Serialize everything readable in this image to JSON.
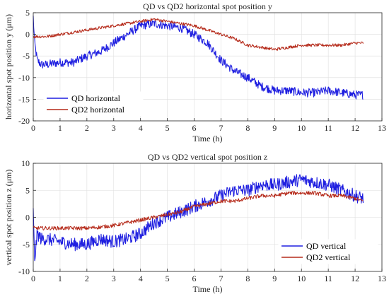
{
  "chart_data": [
    {
      "type": "line",
      "title": "QD vs QD2 horizontal spot position y",
      "xlabel": "Time (h)",
      "ylabel": "horizontal spot position y (μm)",
      "xlim": [
        0,
        13
      ],
      "ylim": [
        -20,
        5
      ],
      "xticks": [
        0,
        1,
        2,
        3,
        4,
        5,
        6,
        7,
        8,
        9,
        10,
        11,
        12,
        13
      ],
      "yticks": [
        5,
        0,
        -5,
        -10,
        -15,
        -20
      ],
      "grid": true,
      "legend": "bottom-left",
      "series": [
        {
          "name": "QD horizontal",
          "color": "#1f1fe0",
          "noise": 1.0,
          "x": [
            0,
            0.05,
            0.15,
            0.3,
            0.5,
            1,
            1.5,
            2,
            2.5,
            3,
            3.5,
            4,
            4.5,
            5,
            5.5,
            6,
            6.5,
            7,
            7.5,
            8,
            8.5,
            9,
            9.5,
            10,
            10.5,
            11,
            11.5,
            12,
            12.3
          ],
          "y": [
            4,
            -2,
            -6,
            -7,
            -7,
            -6.5,
            -6.5,
            -5,
            -4,
            -2,
            0,
            2,
            2.5,
            2,
            1.5,
            0,
            -2,
            -6,
            -8.5,
            -10,
            -12,
            -13,
            -13,
            -13.5,
            -13.5,
            -13,
            -13.5,
            -14,
            -14
          ]
        },
        {
          "name": "QD2 horizontal",
          "color": "#b52a1a",
          "noise": 0.35,
          "x": [
            0,
            0.5,
            1,
            1.5,
            2,
            2.5,
            3,
            3.5,
            4,
            4.5,
            5,
            5.5,
            6,
            6.5,
            7,
            7.5,
            8,
            8.5,
            9,
            9.5,
            10,
            10.5,
            11,
            11.5,
            12,
            12.3
          ],
          "y": [
            -0.5,
            -0.5,
            0,
            0.5,
            1,
            1.5,
            2,
            2.5,
            3,
            3.5,
            3,
            2.5,
            2,
            1,
            0,
            -1,
            -2.5,
            -3,
            -3.5,
            -3,
            -2.5,
            -2.5,
            -2.5,
            -2.5,
            -2,
            -2
          ]
        }
      ]
    },
    {
      "type": "line",
      "title": "QD vs QD2 vertical spot position z",
      "xlabel": "Time (h)",
      "ylabel": "vertical spot position z (μm)",
      "xlim": [
        0,
        13
      ],
      "ylim": [
        -10,
        10
      ],
      "xticks": [
        0,
        1,
        2,
        3,
        4,
        5,
        6,
        7,
        8,
        9,
        10,
        11,
        12,
        13
      ],
      "yticks": [
        10,
        5,
        0,
        -5,
        -10
      ],
      "grid": true,
      "legend": "bottom-right",
      "series": [
        {
          "name": "QD vertical",
          "color": "#1f1fe0",
          "noise": 1.2,
          "x": [
            0,
            0.05,
            0.15,
            0.3,
            0.5,
            1,
            1.5,
            2,
            2.5,
            3,
            3.5,
            4,
            4.5,
            5,
            5.5,
            6,
            6.5,
            7,
            7.5,
            8,
            8.5,
            9,
            9.5,
            10,
            10.5,
            11,
            11.5,
            12,
            12.3
          ],
          "y": [
            1,
            -8,
            -3,
            -4,
            -4,
            -4.5,
            -5,
            -5,
            -4,
            -4.5,
            -4,
            -3,
            -1,
            0,
            1,
            2,
            3,
            4,
            5,
            5,
            6,
            6,
            6.5,
            7,
            6.5,
            6,
            5,
            4,
            3.5
          ]
        },
        {
          "name": "QD2 vertical",
          "color": "#b52a1a",
          "noise": 0.35,
          "x": [
            0,
            0.5,
            1,
            1.5,
            2,
            2.5,
            3,
            3.5,
            4,
            4.5,
            5,
            5.5,
            6,
            6.5,
            7,
            7.5,
            8,
            8.5,
            9,
            9.5,
            10,
            10.5,
            11,
            11.5,
            12,
            12.3
          ],
          "y": [
            -2,
            -2,
            -2,
            -2,
            -2,
            -1.8,
            -1.5,
            -1,
            -0.5,
            0,
            0.5,
            1,
            2,
            2.5,
            3,
            3,
            3.5,
            4,
            4,
            4.5,
            4.5,
            4.5,
            4,
            4,
            3.5,
            3
          ]
        }
      ]
    }
  ]
}
